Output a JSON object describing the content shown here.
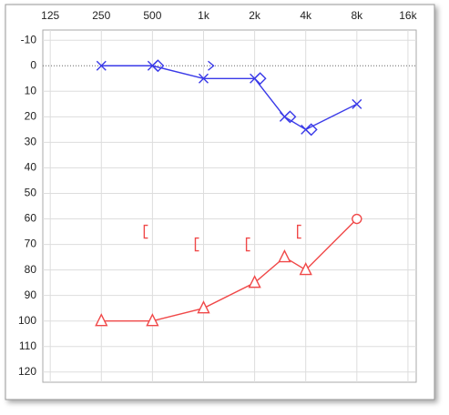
{
  "chart_data": {
    "type": "audiogram",
    "xscale": "log",
    "xlim": [
      113,
      17900
    ],
    "xticks": [
      125,
      250,
      500,
      {
        "value": 1000,
        "label": "1k"
      },
      {
        "value": 2000,
        "label": "2k"
      },
      {
        "value": 4000,
        "label": "4k"
      },
      {
        "value": 8000,
        "label": "8k"
      },
      {
        "value": 16000,
        "label": "16k"
      }
    ],
    "ylim": [
      -14,
      124
    ],
    "yticks": [
      -10,
      0,
      10,
      20,
      30,
      40,
      50,
      60,
      70,
      80,
      90,
      100,
      110,
      120
    ],
    "grid": true,
    "series": [
      {
        "color": "#3a3ae8",
        "marker": "x",
        "line": true,
        "x": [
          250,
          500,
          1000,
          2000,
          3000,
          4000,
          8000
        ],
        "values": [
          0,
          0,
          5,
          5,
          20,
          25,
          15
        ]
      },
      {
        "color": "#3a3ae8",
        "marker": "diamond",
        "line": false,
        "x": [
          500,
          2000,
          3000,
          4000
        ],
        "values": [
          0,
          5,
          20,
          25
        ]
      },
      {
        "color": "#3a3ae8",
        "marker": "arrow",
        "line": false,
        "x": [
          1000
        ],
        "values": [
          0
        ]
      },
      {
        "color": "#f04848",
        "markers": [
          "triangle",
          "triangle",
          "triangle",
          "triangle",
          "triangle",
          "triangle",
          "circle"
        ],
        "line": true,
        "x": [
          250,
          500,
          1000,
          2000,
          3000,
          4000,
          8000
        ],
        "values": [
          100,
          100,
          95,
          85,
          75,
          80,
          60
        ]
      },
      {
        "color": "#f04848",
        "marker": "bracket",
        "line": false,
        "x": [
          500,
          1000,
          2000,
          4000
        ],
        "values": [
          65,
          70,
          70,
          65
        ]
      }
    ]
  }
}
